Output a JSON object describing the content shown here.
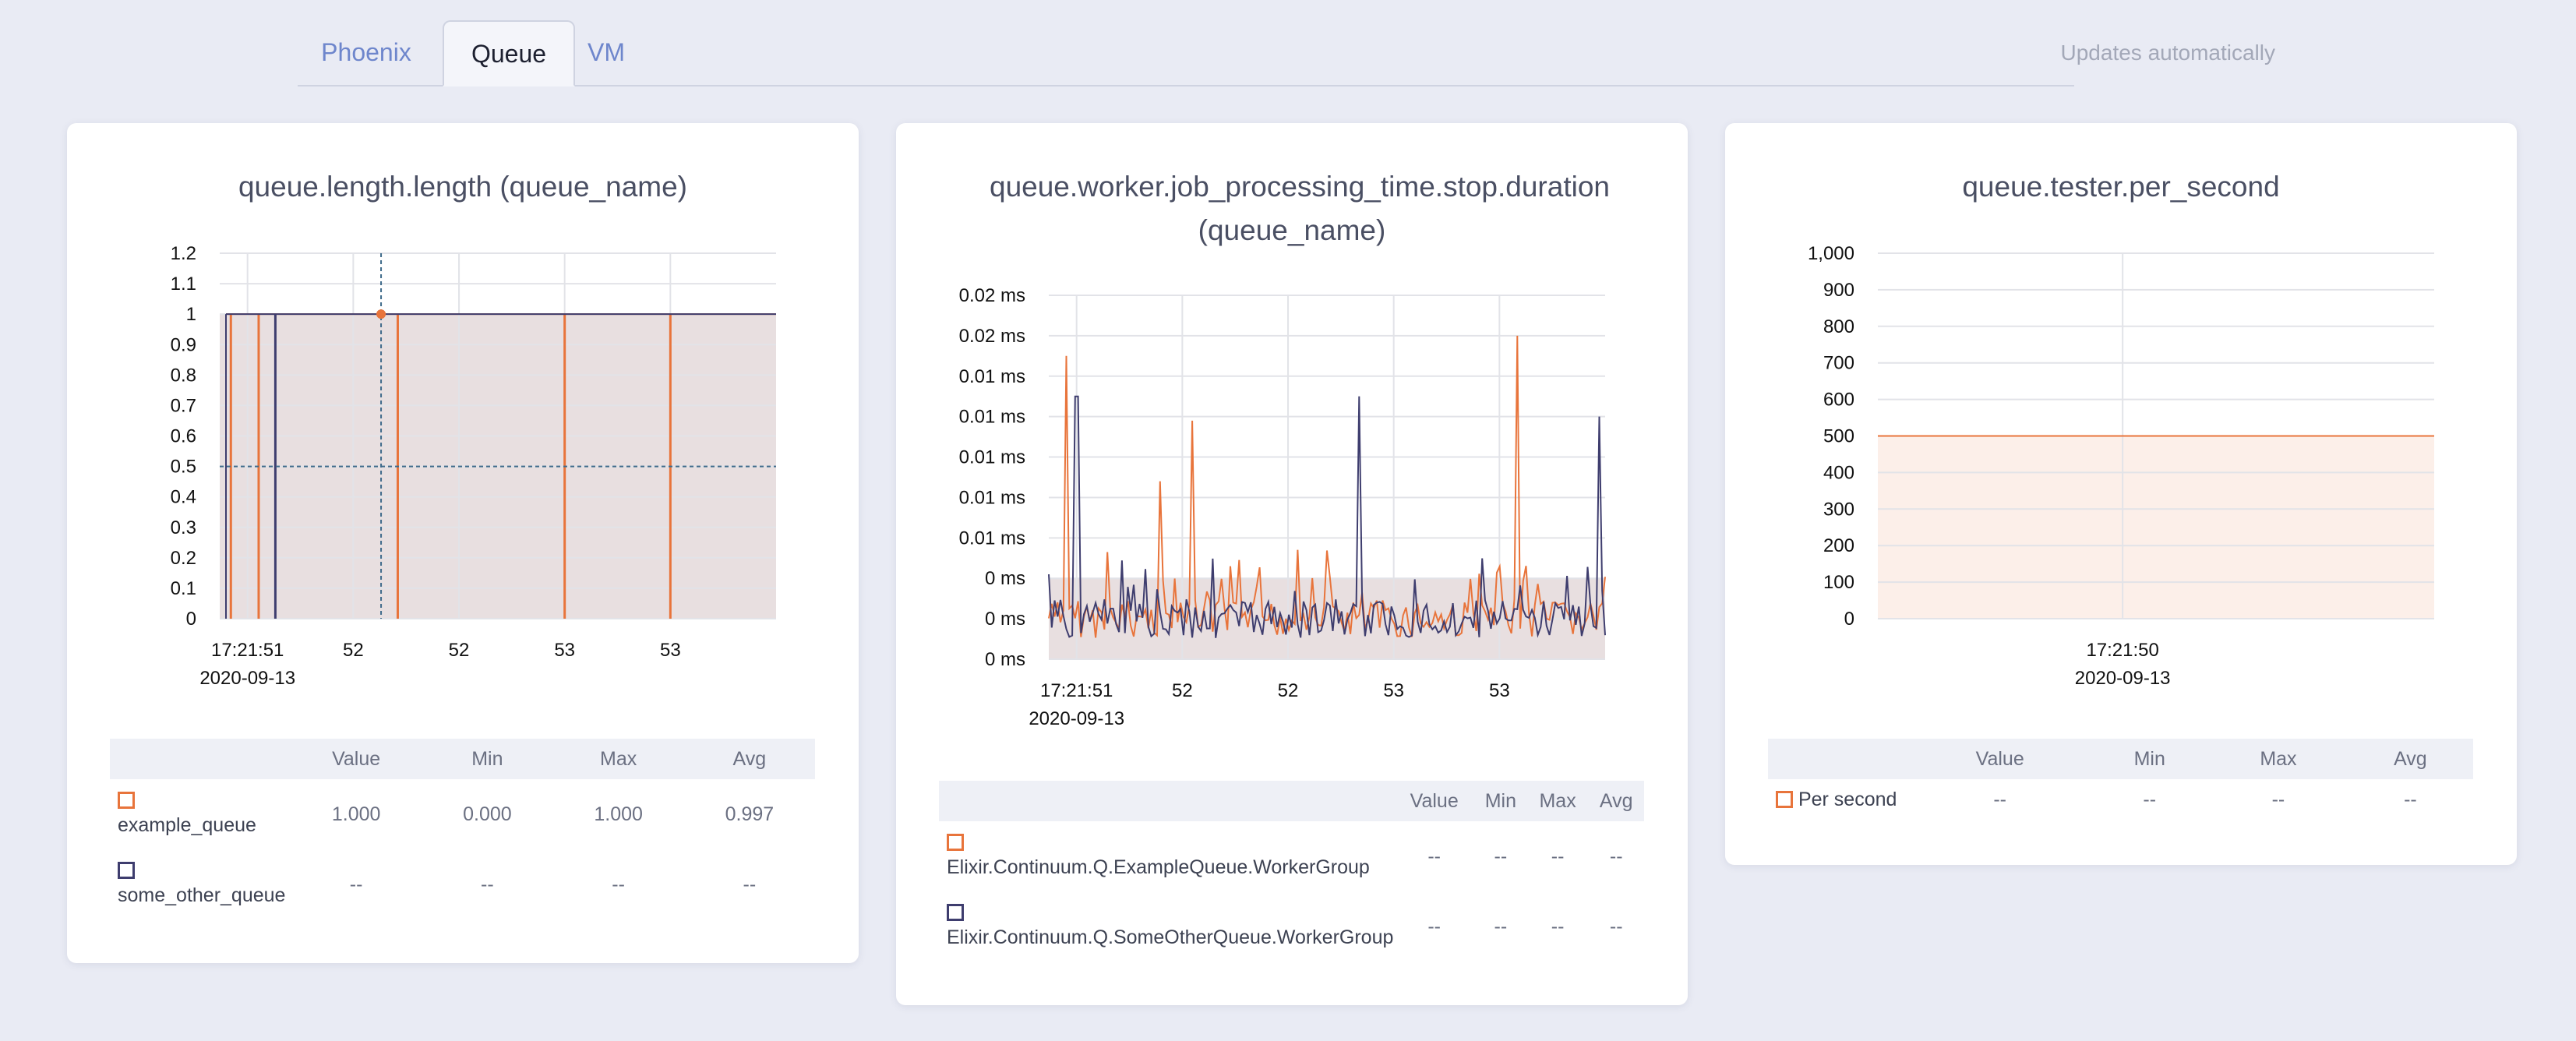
{
  "tabs": [
    {
      "label": "Phoenix",
      "active": false
    },
    {
      "label": "Queue",
      "active": true
    },
    {
      "label": "VM",
      "active": false
    }
  ],
  "status_text": "Updates automatically",
  "colors": {
    "orange": "#e8743b",
    "navy": "#3e3d6e",
    "fill_gray": "#e8e0e1",
    "fill_peach": "#fcefe9"
  },
  "charts": [
    {
      "title": "queue.length.length (queue_name)",
      "chart_data": {
        "type": "line",
        "title": "queue.length.length (queue_name)",
        "yticks": [
          "1.2",
          "1.1",
          "1",
          "0.9",
          "0.8",
          "0.7",
          "0.6",
          "0.5",
          "0.4",
          "0.3",
          "0.2",
          "0.1",
          "0"
        ],
        "ylim": [
          0,
          1.2
        ],
        "xticks": [
          "17:21:51",
          "52",
          "52",
          "53",
          "53"
        ],
        "xdate": "2020-09-13",
        "series": [
          {
            "name": "example_queue",
            "color": "#e8743b",
            "baseline": 1,
            "dips_x": [
              0.02,
              0.07,
              0.32,
              0.62,
              0.81
            ]
          },
          {
            "name": "some_other_queue",
            "color": "#3e3d6e",
            "baseline": 1,
            "dips_x": [
              0.1
            ]
          }
        ],
        "crosshair": {
          "x": 0.29,
          "y": 0.5
        }
      },
      "table": {
        "headers": [
          "",
          "Value",
          "Min",
          "Max",
          "Avg"
        ],
        "rows": [
          {
            "name": "example_queue",
            "color": "#e8743b",
            "value": "1.000",
            "min": "0.000",
            "max": "1.000",
            "avg": "0.997"
          },
          {
            "name": "some_other_queue",
            "color": "#3e3d6e",
            "value": "--",
            "min": "--",
            "max": "--",
            "avg": "--"
          }
        ]
      }
    },
    {
      "title": "queue.worker.job_processing_time.stop.duration (queue_name)",
      "chart_data": {
        "type": "line",
        "title": "queue.worker.job_processing_time.stop.duration (queue_name)",
        "yticks": [
          "0.02 ms",
          "0.02 ms",
          "0.01 ms",
          "0.01 ms",
          "0.01 ms",
          "0.01 ms",
          "0.01 ms",
          "0 ms",
          "0 ms",
          "0 ms"
        ],
        "xticks": [
          "17:21:51",
          "52",
          "52",
          "53",
          "53"
        ],
        "xdate": "2020-09-13",
        "series": [
          {
            "name": "Elixir.Continuum.Q.ExampleQueue.WorkerGroup",
            "color": "#e8743b"
          },
          {
            "name": "Elixir.Continuum.Q.SomeOtherQueue.WorkerGroup",
            "color": "#3e3d6e"
          }
        ]
      },
      "table": {
        "headers": [
          "",
          "Value",
          "Min",
          "Max",
          "Avg"
        ],
        "rows": [
          {
            "name": "Elixir.Continuum.Q.ExampleQueue.WorkerGroup",
            "color": "#e8743b",
            "value": "--",
            "min": "--",
            "max": "--",
            "avg": "--"
          },
          {
            "name": "Elixir.Continuum.Q.SomeOtherQueue.WorkerGroup",
            "color": "#3e3d6e",
            "value": "--",
            "min": "--",
            "max": "--",
            "avg": "--"
          }
        ]
      }
    },
    {
      "title": "queue.tester.per_second",
      "chart_data": {
        "type": "area",
        "title": "queue.tester.per_second",
        "yticks": [
          "1,000",
          "900",
          "800",
          "700",
          "600",
          "500",
          "400",
          "300",
          "200",
          "100",
          "0"
        ],
        "ylim": [
          0,
          1000
        ],
        "xticks": [
          "17:21:50"
        ],
        "xdate": "2020-09-13",
        "series": [
          {
            "name": "Per second",
            "color": "#e8743b",
            "values": [
              500,
              500
            ]
          }
        ]
      },
      "table": {
        "headers": [
          "",
          "Value",
          "Min",
          "Max",
          "Avg"
        ],
        "rows": [
          {
            "name": "Per second",
            "color": "#e8743b",
            "value": "--",
            "min": "--",
            "max": "--",
            "avg": "--"
          }
        ]
      }
    }
  ]
}
